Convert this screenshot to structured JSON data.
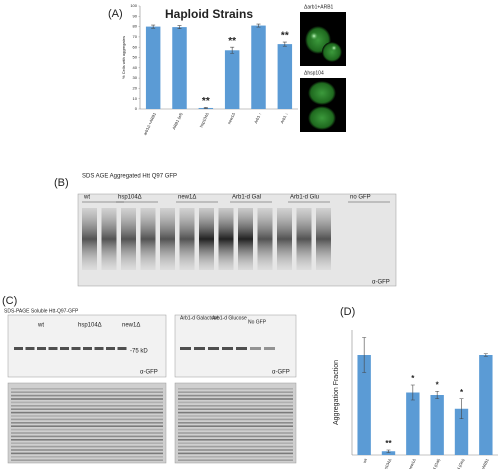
{
  "panels": {
    "a": "(A)",
    "b": "(B)",
    "c": "(C)",
    "d": "(D)"
  },
  "chart_data": [
    {
      "type": "bar",
      "title": "Haploid Strains",
      "y_label": "% Cells with aggregates",
      "categories": [
        "arb1Δ +ARB1",
        "ARB1 (wt)",
        "hsp104Δ",
        "new1Δ",
        "Arb1 ↑",
        "Arb1 ↓"
      ],
      "values": [
        80,
        79.5,
        1,
        57,
        81,
        63
      ],
      "errors": [
        1.5,
        1.5,
        0.5,
        3,
        1.5,
        2
      ],
      "color": "#5b9bd5",
      "ylim": [
        0,
        100
      ],
      "yticks": [
        0,
        10,
        20,
        30,
        40,
        50,
        60,
        70,
        80,
        90,
        100
      ],
      "annotations": [
        {
          "text": "**",
          "category": "hsp104Δ"
        },
        {
          "text": "**",
          "category": "new1Δ"
        },
        {
          "text": "**",
          "category": "Arb1 ↓"
        }
      ]
    },
    {
      "type": "bar",
      "y_label": "Aggregation Fraction",
      "categories": [
        "wt",
        "hsp104Δ",
        "new1Δ",
        "Arb1-d (Gal)",
        "Arb1-d (Glu)",
        "arb1Δ pARB1"
      ],
      "values": [
        0.8,
        0.03,
        0.5,
        0.48,
        0.37,
        0.8
      ],
      "errors": [
        0.14,
        0.01,
        0.06,
        0.03,
        0.08,
        0.01
      ],
      "color": "#5b9bd5",
      "ylim": [
        0,
        1
      ],
      "annotations": [
        {
          "text": "**",
          "category": "hsp104Δ"
        },
        {
          "text": "*",
          "category": "new1Δ"
        },
        {
          "text": "*",
          "category": "Arb1-d (Gal)"
        },
        {
          "text": "*",
          "category": "Arb1-d (Glu)"
        }
      ]
    }
  ],
  "micrographs": [
    "Δarb1+ARB1",
    "Δhsp104"
  ],
  "blot_b": {
    "title": "SDS AGE   Aggregated Htt Q97 GFP",
    "lanes": [
      "wt",
      "hsp104Δ",
      "new1Δ",
      "Arb1-d Gal",
      "Arb1-d Glu",
      "no GFP"
    ],
    "antibody": "α-GFP"
  },
  "blot_c": {
    "title": "SDS-PAGE   Soluble Htt-Q97-GFP",
    "lanes_left": [
      "wt",
      "hsp104Δ",
      "new1Δ"
    ],
    "lanes_right": [
      "Arb1-d Galactose",
      "Arb1-d Glucose",
      "No GFP"
    ],
    "marker": "-75 kD",
    "antibody_left": "α-GFP",
    "antibody_right": "α-GFP"
  }
}
